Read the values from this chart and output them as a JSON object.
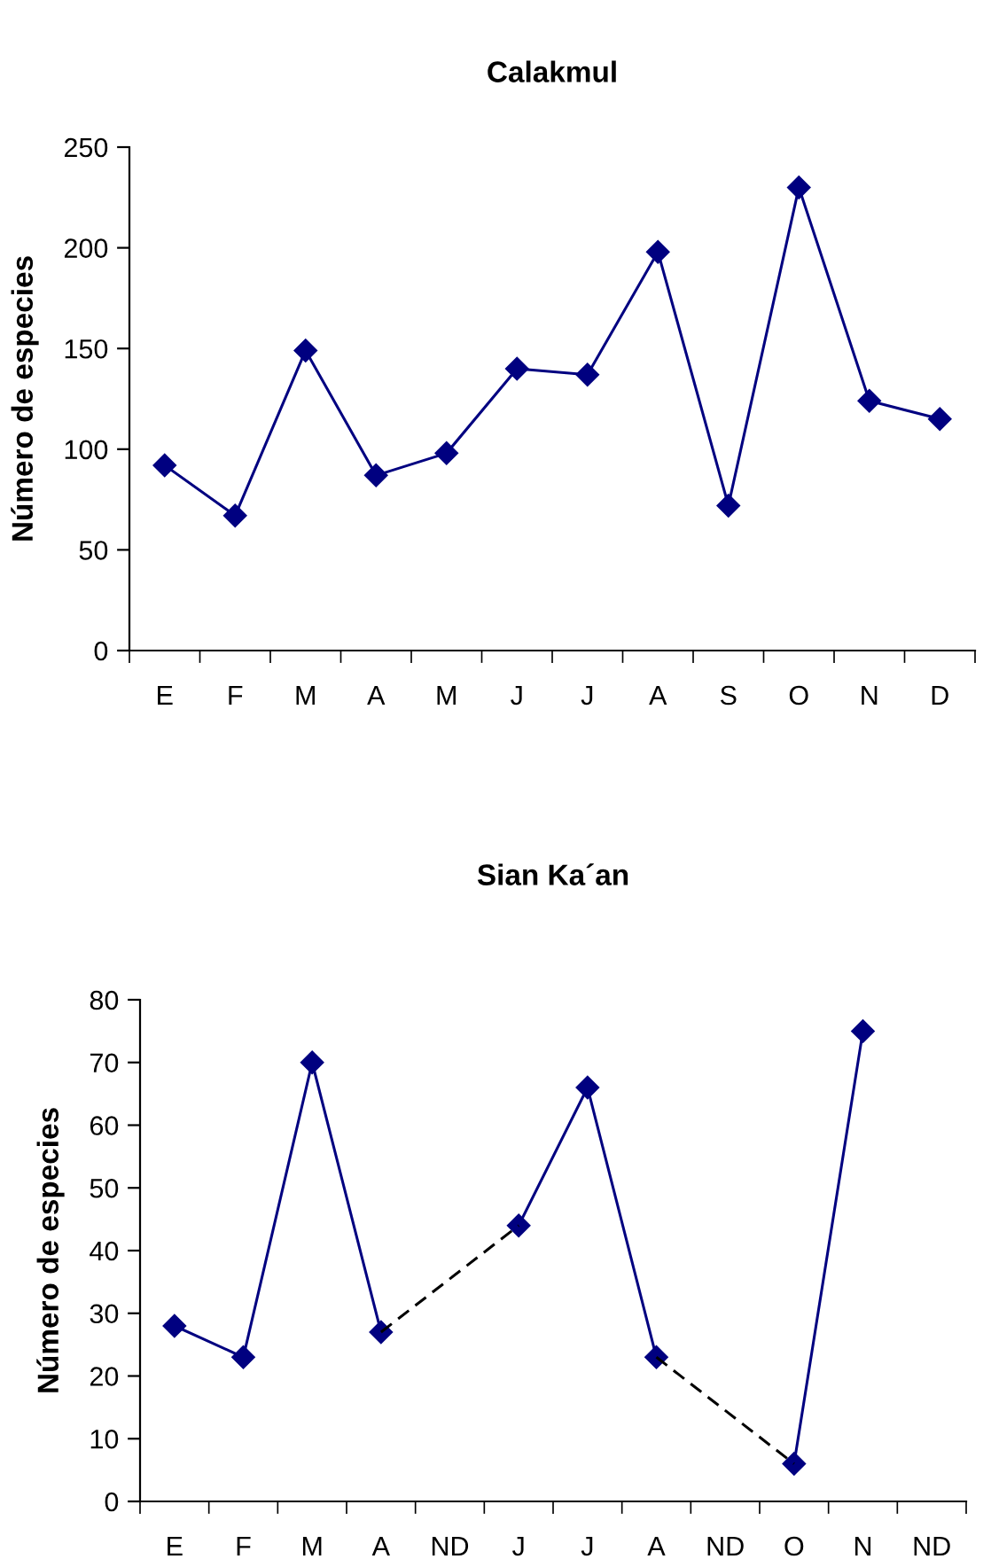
{
  "chart_data": [
    {
      "type": "line",
      "title": "Calakmul",
      "ylabel": "Número de especies",
      "categories": [
        "E",
        "F",
        "M",
        "A",
        "M",
        "J",
        "J",
        "A",
        "S",
        "O",
        "N",
        "D"
      ],
      "series": [
        {
          "color": "#000080",
          "values": [
            92,
            67,
            149,
            87,
            98,
            140,
            137,
            198,
            72,
            230,
            124,
            115
          ]
        }
      ],
      "ylim": [
        0,
        250
      ],
      "yticks": [
        0,
        50,
        100,
        150,
        200,
        250
      ],
      "grid": false,
      "marker": "diamond",
      "line_style": "solid"
    },
    {
      "type": "line",
      "title": "Sian Ka´an",
      "ylabel": "Número de especies",
      "categories": [
        "E",
        "F",
        "M",
        "A",
        "ND",
        "J",
        "J",
        "A",
        "ND",
        "O",
        "N",
        "ND"
      ],
      "series": [
        {
          "color": "#000080",
          "values": [
            28,
            23,
            70,
            27,
            null,
            44,
            66,
            23,
            null,
            6,
            75,
            null
          ]
        },
        {
          "color": "#000000",
          "marker": "none",
          "line_style": "dashed",
          "values": [
            null,
            null,
            null,
            27,
            null,
            44,
            null,
            null,
            null,
            null,
            null,
            null
          ]
        },
        {
          "color": "#000000",
          "marker": "none",
          "line_style": "dashed",
          "values": [
            null,
            null,
            null,
            null,
            null,
            null,
            null,
            23,
            null,
            6,
            null,
            null
          ]
        }
      ],
      "ylim": [
        0,
        80
      ],
      "yticks": [
        0,
        10,
        20,
        30,
        40,
        50,
        60,
        70,
        80
      ],
      "grid": false,
      "marker": "diamond",
      "line_style": "solid"
    }
  ]
}
